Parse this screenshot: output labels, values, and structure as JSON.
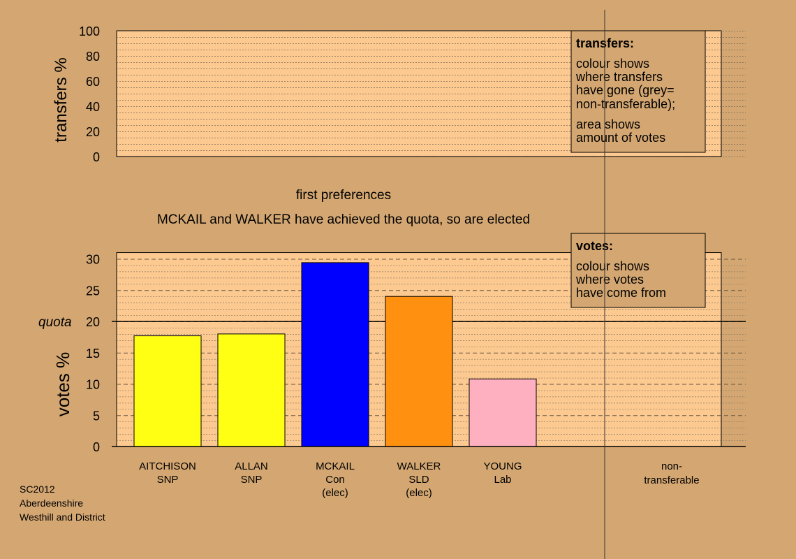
{
  "title": "first preferences",
  "subtitle": "MCKAIL and WALKER have achieved the quota, so are elected",
  "transfers_box": {
    "heading": "transfers:",
    "line1": "colour shows",
    "line2": "where transfers",
    "line3": "have gone (grey=",
    "line4": "non-transferable);",
    "line5": "area shows",
    "line6": "amount of votes"
  },
  "votes_box": {
    "heading": "votes:",
    "line1": "colour shows",
    "line2": "where votes",
    "line3": "have come from"
  },
  "footer": {
    "line1": "SC2012",
    "line2": "Aberdeenshire",
    "line3": "Westhill and District"
  },
  "nontransferable_label": [
    "non-",
    "transferable"
  ],
  "quota_label": "quota",
  "chart_data": [
    {
      "type": "bar",
      "ylabel": "transfers %",
      "ylim": [
        0,
        100
      ],
      "yticks": [
        0,
        20,
        40,
        60,
        80,
        100
      ],
      "categories": [],
      "values": []
    },
    {
      "type": "bar",
      "ylabel": "votes %",
      "ylim": [
        0,
        31
      ],
      "yticks": [
        0,
        5,
        10,
        15,
        20,
        25,
        30
      ],
      "quota": 20,
      "categories": [
        [
          "AITCHISON",
          "SNP"
        ],
        [
          "ALLAN",
          "SNP"
        ],
        [
          "MCKAIL",
          "Con",
          "(elec)"
        ],
        [
          "WALKER",
          "SLD",
          "(elec)"
        ],
        [
          "YOUNG",
          "Lab"
        ]
      ],
      "values": [
        17.7,
        18.0,
        29.4,
        24.0,
        10.8
      ],
      "colors": [
        "#ffff14",
        "#ffff14",
        "#0000ff",
        "#ff9010",
        "#ffb0c0"
      ]
    }
  ],
  "colors": {
    "background": "#d4a772",
    "panel": "#fcc990"
  }
}
